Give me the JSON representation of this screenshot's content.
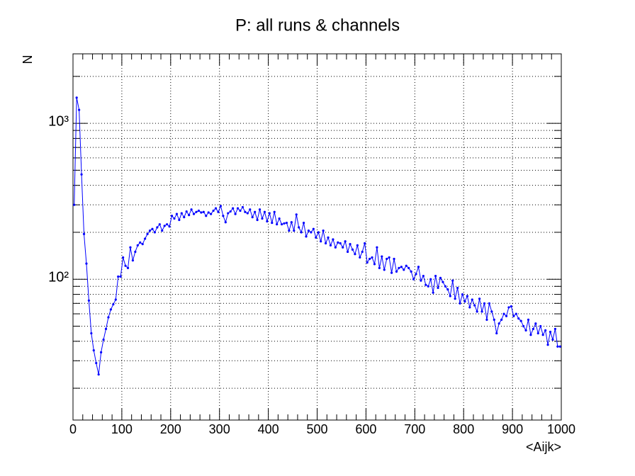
{
  "chart_data": {
    "type": "line",
    "title": "P: all runs & channels",
    "x_label": "<Aijk>",
    "y_label": "N",
    "log_y": true,
    "grid": true,
    "color": "#0000ff",
    "xlim": [
      0,
      1000
    ],
    "xticks": [
      0,
      100,
      200,
      300,
      400,
      500,
      600,
      700,
      800,
      900,
      1000
    ],
    "xminor_ticks": [
      20,
      40,
      60,
      80,
      120,
      140,
      160,
      180,
      220,
      240,
      260,
      280,
      320,
      340,
      360,
      380,
      420,
      440,
      460,
      480,
      520,
      540,
      560,
      580,
      620,
      640,
      660,
      680,
      720,
      740,
      760,
      780,
      820,
      840,
      860,
      880,
      920,
      940,
      960,
      980
    ],
    "ylim": [
      12.5,
      2790
    ],
    "yticks": [
      {
        "value": 100,
        "label": "10²"
      },
      {
        "value": 1000,
        "label": "10³"
      }
    ],
    "yminor_ticks": [
      20,
      30,
      40,
      50,
      60,
      70,
      80,
      90,
      200,
      300,
      400,
      500,
      600,
      700,
      800,
      900,
      2000
    ],
    "x": [
      2.5,
      7.5,
      12.5,
      17.5,
      22.5,
      27.5,
      32.5,
      37.5,
      42.5,
      47.5,
      52.5,
      57.5,
      62.5,
      67.5,
      72.5,
      77.5,
      82.5,
      87.5,
      92.5,
      97.5,
      102.5,
      107.5,
      112.5,
      117.5,
      122.5,
      127.5,
      132.5,
      137.5,
      142.5,
      147.5,
      152.5,
      157.5,
      162.5,
      167.5,
      172.5,
      177.5,
      182.5,
      187.5,
      192.5,
      197.5,
      202.5,
      207.5,
      212.5,
      217.5,
      222.5,
      227.5,
      232.5,
      237.5,
      242.5,
      247.5,
      252.5,
      257.5,
      262.5,
      267.5,
      272.5,
      277.5,
      282.5,
      287.5,
      292.5,
      297.5,
      302.5,
      307.5,
      312.5,
      317.5,
      322.5,
      327.5,
      332.5,
      337.5,
      342.5,
      347.5,
      352.5,
      357.5,
      362.5,
      367.5,
      372.5,
      377.5,
      382.5,
      387.5,
      392.5,
      397.5,
      402.5,
      407.5,
      412.5,
      417.5,
      422.5,
      427.5,
      432.5,
      437.5,
      442.5,
      447.5,
      452.5,
      457.5,
      462.5,
      467.5,
      472.5,
      477.5,
      482.5,
      487.5,
      492.5,
      497.5,
      502.5,
      507.5,
      512.5,
      517.5,
      522.5,
      527.5,
      532.5,
      537.5,
      542.5,
      547.5,
      552.5,
      557.5,
      562.5,
      567.5,
      572.5,
      577.5,
      582.5,
      587.5,
      592.5,
      597.5,
      602.5,
      607.5,
      612.5,
      617.5,
      622.5,
      627.5,
      632.5,
      637.5,
      642.5,
      647.5,
      652.5,
      657.5,
      662.5,
      667.5,
      672.5,
      677.5,
      682.5,
      687.5,
      692.5,
      697.5,
      702.5,
      707.5,
      712.5,
      717.5,
      722.5,
      727.5,
      732.5,
      737.5,
      742.5,
      747.5,
      752.5,
      757.5,
      762.5,
      767.5,
      772.5,
      777.5,
      782.5,
      787.5,
      792.5,
      797.5,
      802.5,
      807.5,
      812.5,
      817.5,
      822.5,
      827.5,
      832.5,
      837.5,
      842.5,
      847.5,
      852.5,
      857.5,
      862.5,
      867.5,
      872.5,
      877.5,
      882.5,
      887.5,
      892.5,
      897.5,
      902.5,
      907.5,
      912.5,
      917.5,
      922.5,
      927.5,
      932.5,
      937.5,
      942.5,
      947.5,
      952.5,
      957.5,
      962.5,
      967.5,
      972.5,
      977.5,
      982.5,
      987.5,
      992.5,
      997.5
    ],
    "values": [
      300,
      1460,
      1220,
      470,
      195,
      126,
      73,
      45,
      35,
      29,
      24.5,
      34,
      41,
      48,
      57,
      64,
      69,
      74,
      104,
      104,
      138,
      122,
      118,
      160,
      132,
      150,
      165,
      172,
      168,
      182,
      195,
      205,
      210,
      200,
      215,
      225,
      205,
      220,
      225,
      218,
      255,
      245,
      262,
      240,
      265,
      250,
      272,
      258,
      280,
      262,
      270,
      275,
      268,
      270,
      255,
      268,
      262,
      275,
      285,
      270,
      295,
      255,
      232,
      265,
      272,
      285,
      262,
      285,
      275,
      290,
      270,
      265,
      280,
      250,
      270,
      240,
      280,
      245,
      270,
      235,
      265,
      230,
      270,
      225,
      245,
      225,
      228,
      230,
      205,
      232,
      205,
      260,
      215,
      200,
      230,
      188,
      205,
      200,
      210,
      185,
      200,
      175,
      205,
      170,
      185,
      165,
      180,
      160,
      172,
      170,
      160,
      175,
      150,
      168,
      155,
      145,
      165,
      138,
      150,
      170,
      128,
      135,
      138,
      125,
      160,
      118,
      140,
      115,
      135,
      138,
      110,
      135,
      112,
      118,
      120,
      115,
      122,
      118,
      112,
      100,
      108,
      120,
      98,
      105,
      92,
      90,
      100,
      82,
      105,
      88,
      102,
      96,
      90,
      86,
      78,
      98,
      75,
      88,
      70,
      80,
      72,
      78,
      66,
      74,
      68,
      62,
      75,
      62,
      70,
      55,
      70,
      62,
      55,
      45,
      52,
      55,
      60,
      58,
      66,
      67,
      58,
      60,
      56,
      54,
      50,
      47,
      55,
      44,
      48,
      52,
      45,
      50,
      44,
      47,
      38,
      46,
      41,
      48,
      37,
      37
    ]
  }
}
